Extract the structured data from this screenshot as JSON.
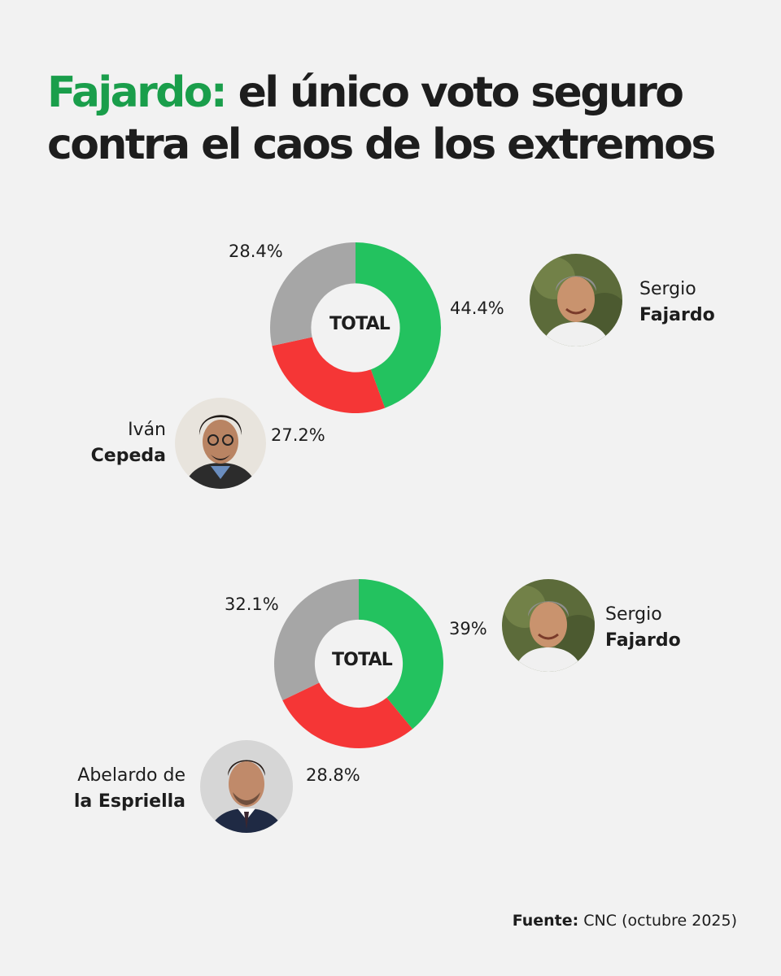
{
  "headline": {
    "highlight": "Fajardo:",
    "rest": " el único voto seguro contra el caos  de los extremos"
  },
  "colors": {
    "fajardo": "#23c25f",
    "opponent": "#f53636",
    "other": "#a6a6a6",
    "headline_accent": "#1a9e4b"
  },
  "chart_data": [
    {
      "type": "pie",
      "center_label": "TOTAL",
      "slices": [
        {
          "candidate": "fajardo",
          "value": 44.4,
          "label": "44.4%",
          "color": "#23c25f"
        },
        {
          "candidate": "cepeda",
          "value": 27.2,
          "label": "27.2%",
          "color": "#f53636"
        },
        {
          "candidate": "other",
          "value": 28.4,
          "label": "28.4%",
          "color": "#a6a6a6"
        }
      ]
    },
    {
      "type": "pie",
      "center_label": "TOTAL",
      "slices": [
        {
          "candidate": "fajardo",
          "value": 39,
          "label": "39%",
          "color": "#23c25f"
        },
        {
          "candidate": "espriella",
          "value": 28.8,
          "label": "28.8%",
          "color": "#f53636"
        },
        {
          "candidate": "other",
          "value": 32.1,
          "label": "32.1%",
          "color": "#a6a6a6"
        }
      ]
    }
  ],
  "candidates": {
    "fajardo_1": {
      "first": "Sergio",
      "last": "Fajardo"
    },
    "cepeda": {
      "first": "Iván",
      "last": "Cepeda"
    },
    "fajardo_2": {
      "first": "Sergio",
      "last": "Fajardo"
    },
    "espriella": {
      "first": "Abelardo de",
      "last": "la Espriella"
    }
  },
  "source": {
    "label": "Fuente:",
    "text": " CNC (octubre 2025)"
  }
}
